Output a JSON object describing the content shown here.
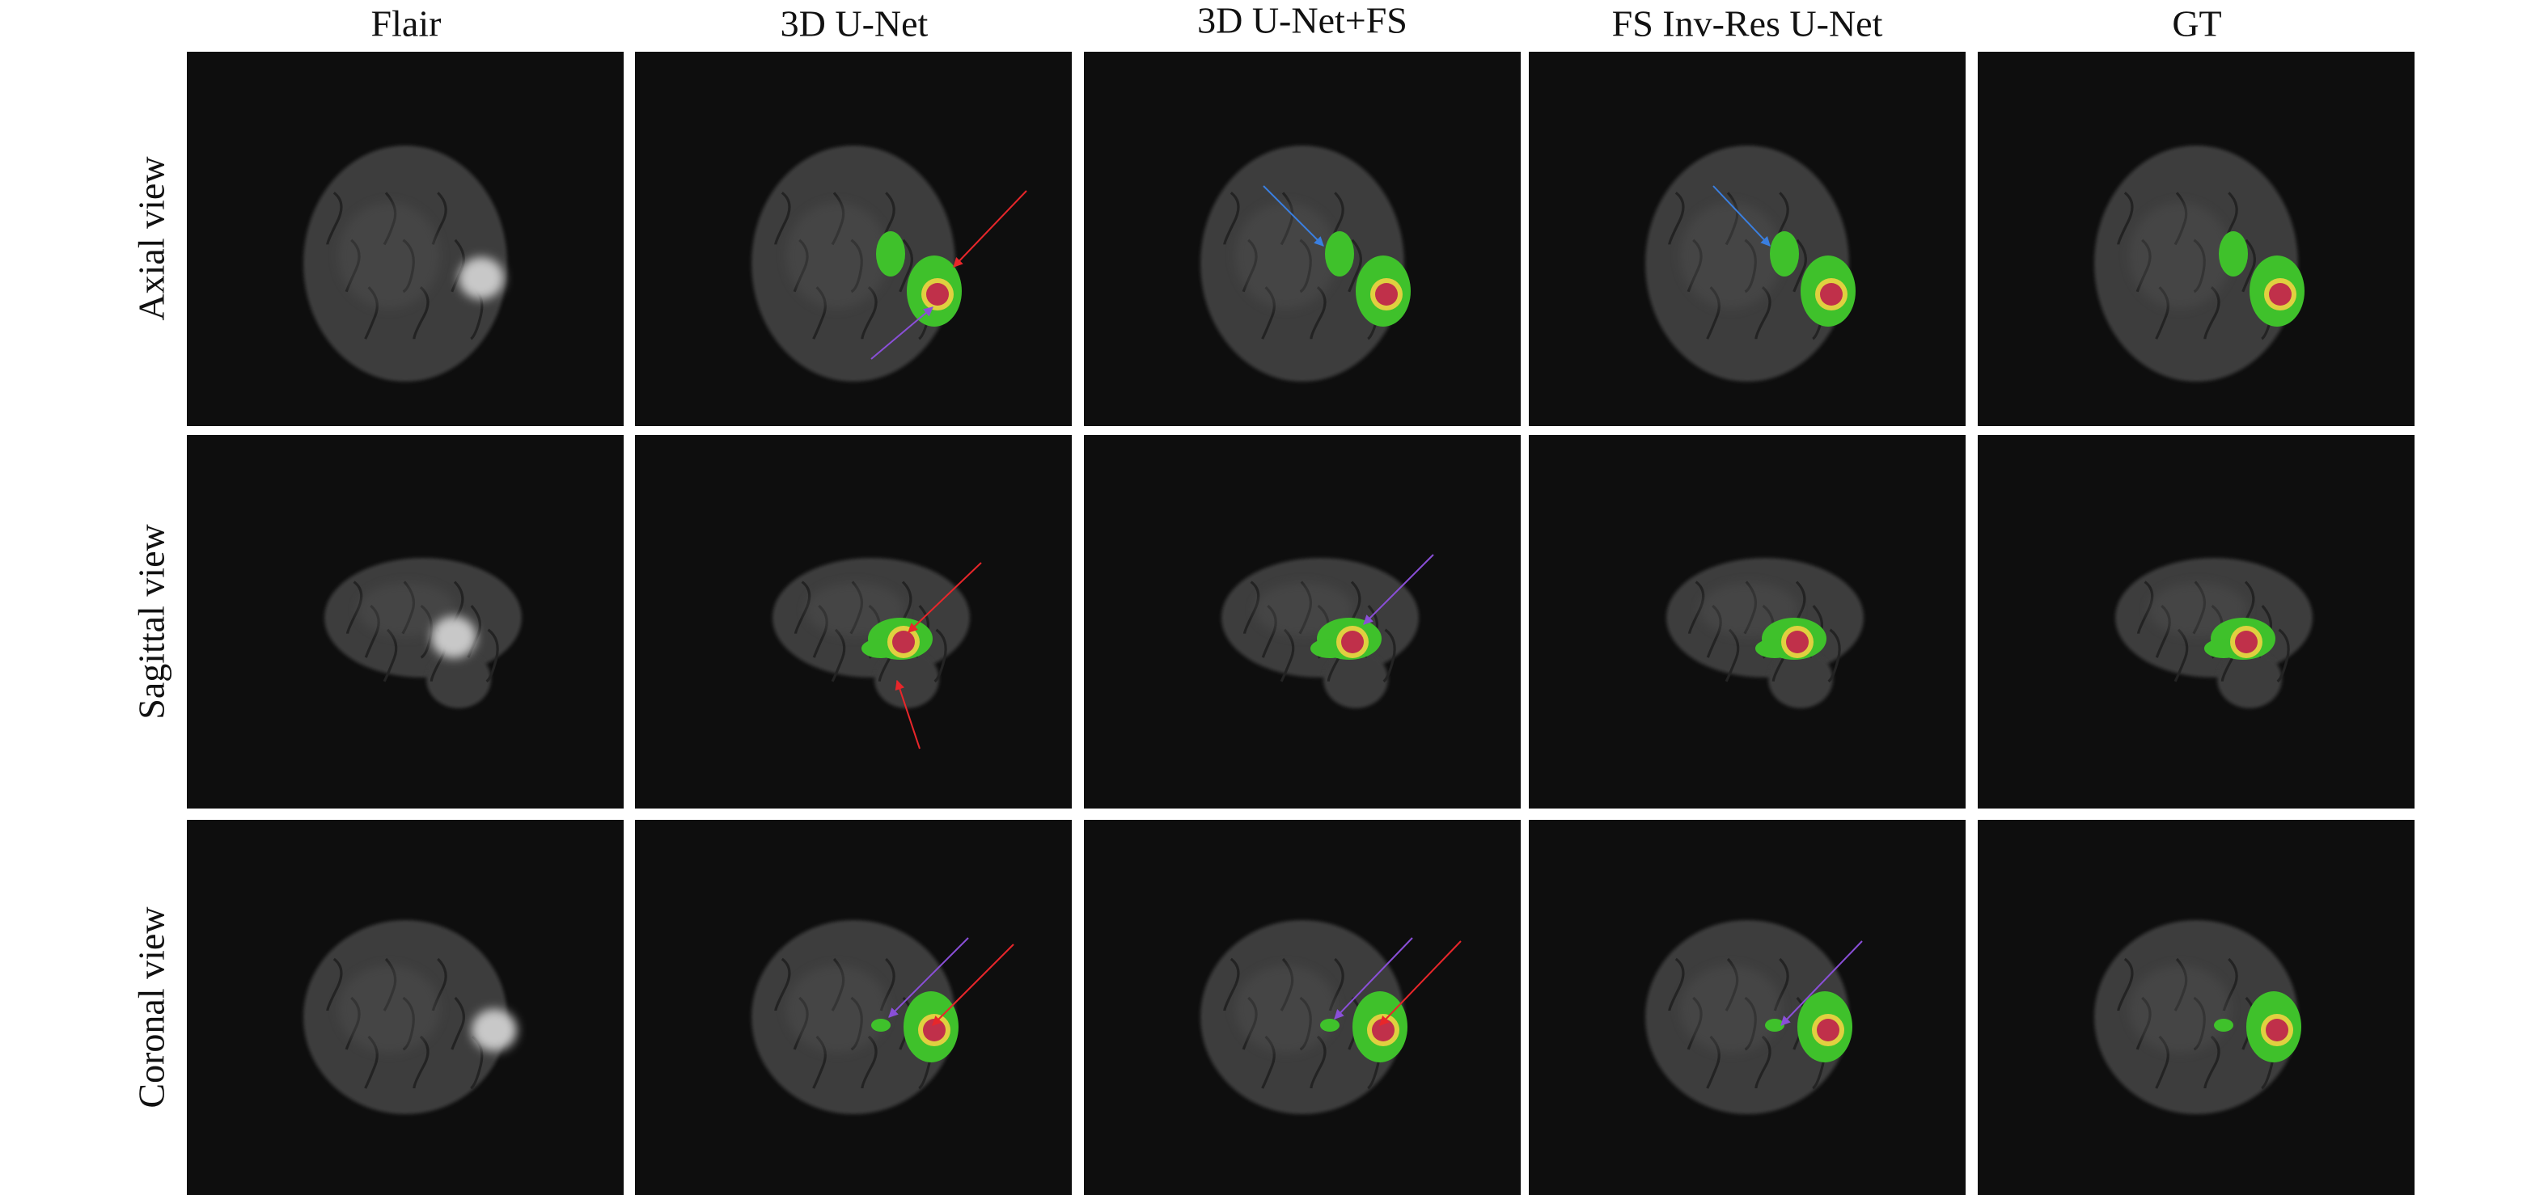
{
  "columns": [
    "Flair",
    "3D U-Net",
    "3D U-Net+FS",
    "FS Inv-Res U-Net",
    "GT"
  ],
  "rows": [
    "Axial view",
    "Sagittal view",
    "Coronal view"
  ]
}
